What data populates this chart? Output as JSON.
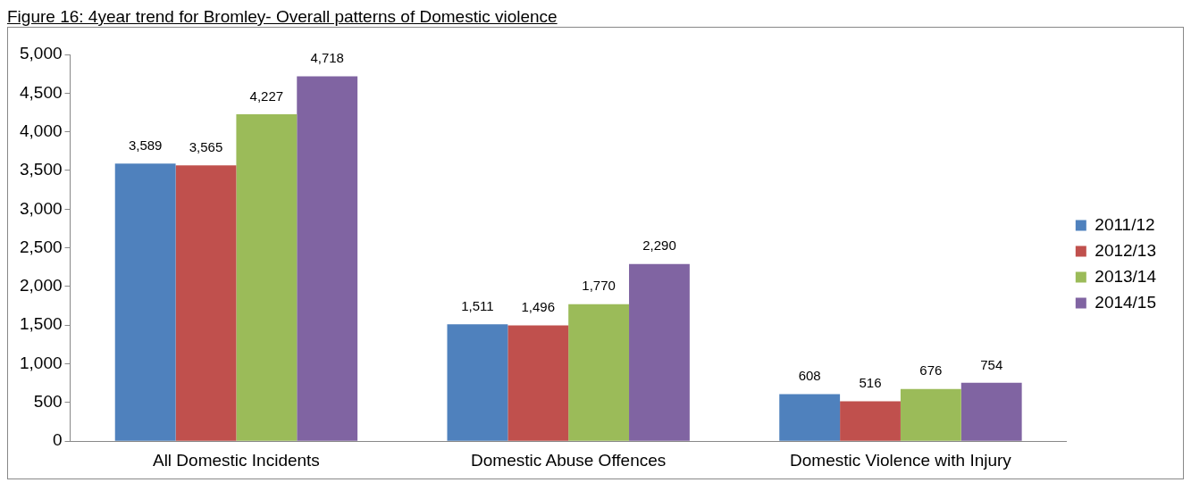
{
  "chart_data": {
    "type": "bar",
    "title": "Figure 16: 4year trend for Bromley- Overall patterns of Domestic violence",
    "categories": [
      "All Domestic Incidents",
      "Domestic Abuse Offences",
      "Domestic Violence with Injury"
    ],
    "series": [
      {
        "name": "2011/12",
        "color": "#4f81bd",
        "values": [
          3589,
          1511,
          608
        ],
        "value_labels": [
          "3,589",
          "1,511",
          "608"
        ]
      },
      {
        "name": "2012/13",
        "color": "#c0504d",
        "values": [
          3565,
          1496,
          516
        ],
        "value_labels": [
          "3,565",
          "1,496",
          "516"
        ]
      },
      {
        "name": "2013/14",
        "color": "#9bbb59",
        "values": [
          4227,
          1770,
          676
        ],
        "value_labels": [
          "4,227",
          "1,770",
          "676"
        ]
      },
      {
        "name": "2014/15",
        "color": "#8064a2",
        "values": [
          4718,
          2290,
          754
        ],
        "value_labels": [
          "4,718",
          "2,290",
          "754"
        ]
      }
    ],
    "ylim": [
      0,
      5000
    ],
    "yticks": [
      0,
      500,
      {
        "value": 1000,
        "label": "1,000"
      },
      {
        "value": 1500,
        "label": "1,500"
      },
      {
        "value": 2000,
        "label": "2,000"
      },
      {
        "value": 2500,
        "label": "2,500"
      },
      {
        "value": 3000,
        "label": "3,000"
      },
      {
        "value": 3500,
        "label": "3,500"
      },
      {
        "value": 4000,
        "label": "4,000"
      },
      {
        "value": 4500,
        "label": "4,500"
      },
      {
        "value": 5000,
        "label": "5,000"
      }
    ],
    "grid": false,
    "legend": "right"
  }
}
